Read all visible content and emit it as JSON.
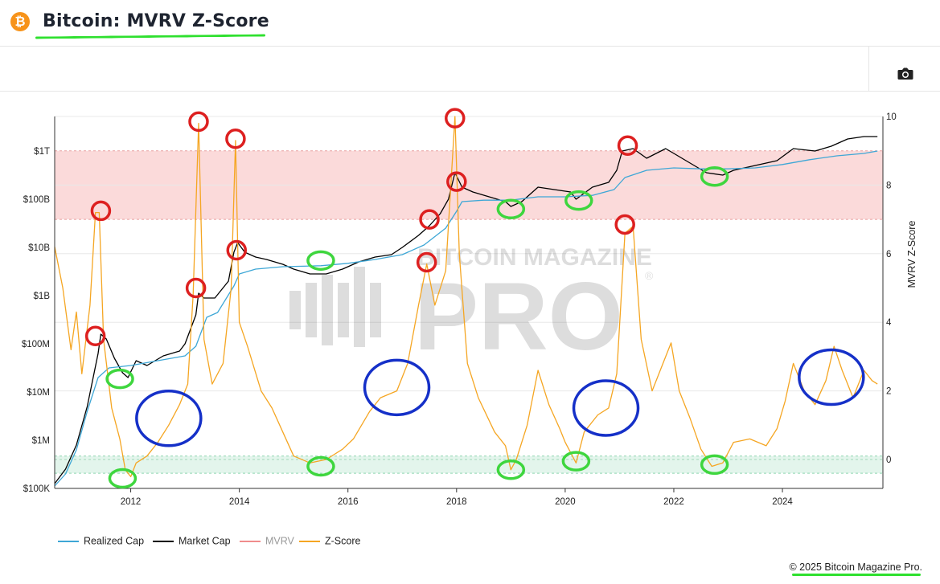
{
  "header": {
    "title": "Bitcoin: MVRV Z-Score",
    "icon": "bitcoin-icon",
    "icon_glyph": "₿"
  },
  "toolbar": {
    "camera_icon": "camera-icon"
  },
  "watermark": {
    "line1": "BITCOIN MAGAZINE",
    "line2": "PRO",
    "registered": "®"
  },
  "footer": {
    "copyright": "© 2025 Bitcoin Magazine Pro."
  },
  "colors": {
    "realized_cap": "#3ea7d6",
    "market_cap": "#000000",
    "mvrv": "#f08c8c",
    "z_score": "#f5a623",
    "red_zone": "#fbdada",
    "green_zone": "#e3f5ec",
    "annotation_red": "#dd2020",
    "annotation_green": "#3ed63e",
    "annotation_blue": "#1530c8"
  },
  "legend": [
    {
      "label": "Realized Cap",
      "color": "#3ea7d6"
    },
    {
      "label": "Market Cap",
      "color": "#000000"
    },
    {
      "label": "MVRV",
      "color": "#f08c8c"
    },
    {
      "label": "Z-Score",
      "color": "#f5a623"
    }
  ],
  "chart_data": {
    "type": "line",
    "title": "Bitcoin: MVRV Z-Score",
    "x_ticks": [
      "2012",
      "2014",
      "2016",
      "2018",
      "2020",
      "2022",
      "2024"
    ],
    "x_range": [
      2010.6,
      2025.85
    ],
    "left_axis": {
      "scale": "log",
      "ticks": [
        "$100K",
        "$1M",
        "$10M",
        "$100M",
        "$1B",
        "$10B",
        "$100B",
        "$1T"
      ],
      "range_log10": [
        5,
        12.95
      ]
    },
    "right_axis": {
      "label": "MVRV Z-Score",
      "ticks": [
        "0",
        "2",
        "4",
        "6",
        "8",
        "10"
      ],
      "range": [
        -0.85,
        10
      ]
    },
    "zones": [
      {
        "name": "overvalued",
        "from": 7.0,
        "to": 9.0,
        "color": "#fbdada"
      },
      {
        "name": "undervalued",
        "from": -0.4,
        "to": 0.1,
        "color": "#e3f5ec"
      }
    ],
    "series": [
      {
        "name": "Market Cap",
        "axis": "left",
        "color": "#000000",
        "points": [
          [
            2010.6,
            5.1
          ],
          [
            2010.8,
            5.4
          ],
          [
            2011.0,
            5.9
          ],
          [
            2011.2,
            6.7
          ],
          [
            2011.4,
            7.8
          ],
          [
            2011.45,
            8.2
          ],
          [
            2011.55,
            8.1
          ],
          [
            2011.7,
            7.7
          ],
          [
            2011.85,
            7.4
          ],
          [
            2011.95,
            7.3
          ],
          [
            2012.1,
            7.65
          ],
          [
            2012.3,
            7.55
          ],
          [
            2012.6,
            7.75
          ],
          [
            2012.9,
            7.85
          ],
          [
            2013.0,
            8.0
          ],
          [
            2013.2,
            8.6
          ],
          [
            2013.25,
            9.05
          ],
          [
            2013.35,
            8.95
          ],
          [
            2013.55,
            8.95
          ],
          [
            2013.8,
            9.3
          ],
          [
            2013.9,
            9.9
          ],
          [
            2013.97,
            10.1
          ],
          [
            2014.1,
            9.9
          ],
          [
            2014.3,
            9.8
          ],
          [
            2014.5,
            9.75
          ],
          [
            2014.8,
            9.65
          ],
          [
            2015.0,
            9.55
          ],
          [
            2015.3,
            9.45
          ],
          [
            2015.6,
            9.45
          ],
          [
            2015.9,
            9.55
          ],
          [
            2016.2,
            9.7
          ],
          [
            2016.5,
            9.8
          ],
          [
            2016.8,
            9.85
          ],
          [
            2017.0,
            10.0
          ],
          [
            2017.3,
            10.25
          ],
          [
            2017.5,
            10.45
          ],
          [
            2017.7,
            10.7
          ],
          [
            2017.85,
            11.0
          ],
          [
            2017.97,
            11.55
          ],
          [
            2018.1,
            11.25
          ],
          [
            2018.3,
            11.15
          ],
          [
            2018.6,
            11.05
          ],
          [
            2018.9,
            10.95
          ],
          [
            2019.0,
            10.85
          ],
          [
            2019.2,
            10.95
          ],
          [
            2019.5,
            11.25
          ],
          [
            2019.8,
            11.2
          ],
          [
            2020.1,
            11.15
          ],
          [
            2020.2,
            11.0
          ],
          [
            2020.5,
            11.25
          ],
          [
            2020.8,
            11.35
          ],
          [
            2020.95,
            11.6
          ],
          [
            2021.05,
            12.0
          ],
          [
            2021.25,
            12.05
          ],
          [
            2021.5,
            11.85
          ],
          [
            2021.85,
            12.05
          ],
          [
            2022.0,
            11.95
          ],
          [
            2022.3,
            11.75
          ],
          [
            2022.6,
            11.55
          ],
          [
            2022.9,
            11.5
          ],
          [
            2023.1,
            11.6
          ],
          [
            2023.5,
            11.7
          ],
          [
            2023.9,
            11.8
          ],
          [
            2024.2,
            12.05
          ],
          [
            2024.6,
            12.0
          ],
          [
            2024.9,
            12.1
          ],
          [
            2025.2,
            12.25
          ],
          [
            2025.5,
            12.3
          ],
          [
            2025.75,
            12.3
          ]
        ]
      },
      {
        "name": "Realized Cap",
        "axis": "left",
        "color": "#3ea7d6",
        "points": [
          [
            2010.6,
            5.05
          ],
          [
            2010.8,
            5.3
          ],
          [
            2011.0,
            5.8
          ],
          [
            2011.2,
            6.6
          ],
          [
            2011.4,
            7.3
          ],
          [
            2011.6,
            7.5
          ],
          [
            2012.0,
            7.55
          ],
          [
            2012.5,
            7.65
          ],
          [
            2013.0,
            7.75
          ],
          [
            2013.2,
            7.95
          ],
          [
            2013.4,
            8.55
          ],
          [
            2013.6,
            8.65
          ],
          [
            2013.9,
            9.2
          ],
          [
            2014.0,
            9.45
          ],
          [
            2014.3,
            9.55
          ],
          [
            2014.8,
            9.6
          ],
          [
            2015.5,
            9.62
          ],
          [
            2016.0,
            9.67
          ],
          [
            2016.5,
            9.75
          ],
          [
            2017.0,
            9.85
          ],
          [
            2017.4,
            10.05
          ],
          [
            2017.8,
            10.4
          ],
          [
            2018.0,
            10.75
          ],
          [
            2018.1,
            10.95
          ],
          [
            2018.5,
            10.98
          ],
          [
            2019.0,
            10.98
          ],
          [
            2019.5,
            11.05
          ],
          [
            2020.0,
            11.05
          ],
          [
            2020.5,
            11.08
          ],
          [
            2020.9,
            11.2
          ],
          [
            2021.1,
            11.45
          ],
          [
            2021.5,
            11.6
          ],
          [
            2022.0,
            11.65
          ],
          [
            2022.5,
            11.63
          ],
          [
            2023.0,
            11.63
          ],
          [
            2023.5,
            11.65
          ],
          [
            2024.0,
            11.72
          ],
          [
            2024.5,
            11.82
          ],
          [
            2025.0,
            11.9
          ],
          [
            2025.5,
            11.95
          ],
          [
            2025.75,
            12.0
          ]
        ]
      },
      {
        "name": "Z-Score",
        "axis": "right",
        "color": "#f5a623",
        "points": [
          [
            2010.6,
            6.2
          ],
          [
            2010.75,
            5.0
          ],
          [
            2010.9,
            3.2
          ],
          [
            2011.0,
            4.3
          ],
          [
            2011.1,
            2.5
          ],
          [
            2011.25,
            4.5
          ],
          [
            2011.35,
            7.2
          ],
          [
            2011.42,
            7.2
          ],
          [
            2011.5,
            3.5
          ],
          [
            2011.65,
            1.5
          ],
          [
            2011.8,
            0.6
          ],
          [
            2011.9,
            -0.3
          ],
          [
            2012.0,
            -0.5
          ],
          [
            2012.1,
            -0.1
          ],
          [
            2012.3,
            0.1
          ],
          [
            2012.5,
            0.5
          ],
          [
            2012.7,
            1.0
          ],
          [
            2012.9,
            1.6
          ],
          [
            2013.05,
            2.2
          ],
          [
            2013.15,
            4.8
          ],
          [
            2013.25,
            9.8
          ],
          [
            2013.35,
            3.5
          ],
          [
            2013.5,
            2.2
          ],
          [
            2013.7,
            2.8
          ],
          [
            2013.85,
            5.0
          ],
          [
            2013.93,
            9.3
          ],
          [
            2014.0,
            4.0
          ],
          [
            2014.15,
            3.3
          ],
          [
            2014.4,
            2.0
          ],
          [
            2014.6,
            1.5
          ],
          [
            2014.8,
            0.8
          ],
          [
            2015.0,
            0.1
          ],
          [
            2015.3,
            -0.1
          ],
          [
            2015.6,
            0.0
          ],
          [
            2015.9,
            0.3
          ],
          [
            2016.1,
            0.6
          ],
          [
            2016.4,
            1.4
          ],
          [
            2016.6,
            1.8
          ],
          [
            2016.9,
            2.0
          ],
          [
            2017.1,
            2.8
          ],
          [
            2017.3,
            4.5
          ],
          [
            2017.45,
            5.7
          ],
          [
            2017.6,
            4.5
          ],
          [
            2017.8,
            5.5
          ],
          [
            2017.97,
            10.0
          ],
          [
            2018.05,
            6.0
          ],
          [
            2018.2,
            2.8
          ],
          [
            2018.4,
            1.8
          ],
          [
            2018.7,
            0.8
          ],
          [
            2018.9,
            0.4
          ],
          [
            2019.0,
            -0.3
          ],
          [
            2019.1,
            0.0
          ],
          [
            2019.3,
            1.0
          ],
          [
            2019.5,
            2.6
          ],
          [
            2019.7,
            1.6
          ],
          [
            2019.9,
            0.9
          ],
          [
            2020.0,
            0.5
          ],
          [
            2020.2,
            -0.1
          ],
          [
            2020.35,
            0.8
          ],
          [
            2020.6,
            1.3
          ],
          [
            2020.8,
            1.5
          ],
          [
            2020.95,
            2.5
          ],
          [
            2021.1,
            6.6
          ],
          [
            2021.25,
            6.8
          ],
          [
            2021.4,
            3.5
          ],
          [
            2021.6,
            2.0
          ],
          [
            2021.8,
            2.8
          ],
          [
            2021.95,
            3.4
          ],
          [
            2022.1,
            2.0
          ],
          [
            2022.3,
            1.2
          ],
          [
            2022.5,
            0.3
          ],
          [
            2022.7,
            -0.2
          ],
          [
            2022.9,
            -0.1
          ],
          [
            2023.1,
            0.5
          ],
          [
            2023.4,
            0.6
          ],
          [
            2023.7,
            0.4
          ],
          [
            2023.9,
            0.9
          ],
          [
            2024.05,
            1.7
          ],
          [
            2024.2,
            2.8
          ],
          [
            2024.4,
            2.0
          ],
          [
            2024.6,
            1.6
          ],
          [
            2024.8,
            2.3
          ],
          [
            2024.95,
            3.3
          ],
          [
            2025.1,
            2.6
          ],
          [
            2025.3,
            1.8
          ],
          [
            2025.5,
            2.6
          ],
          [
            2025.65,
            2.3
          ],
          [
            2025.75,
            2.2
          ]
        ]
      }
    ],
    "annotations": {
      "red_circles": [
        [
          2011.45,
          7.25
        ],
        [
          2013.25,
          9.85
        ],
        [
          2013.93,
          9.35
        ],
        [
          2011.35,
          3.6
        ],
        [
          2013.2,
          5.0
        ],
        [
          2013.95,
          6.1
        ],
        [
          2017.5,
          7.0
        ],
        [
          2017.45,
          5.75
        ],
        [
          2018.0,
          8.1
        ],
        [
          2017.97,
          9.95
        ],
        [
          2021.15,
          9.15
        ],
        [
          2021.1,
          6.85
        ]
      ],
      "green_circles": [
        [
          2011.8,
          2.35
        ],
        [
          2011.85,
          -0.55
        ],
        [
          2015.5,
          5.8
        ],
        [
          2015.5,
          -0.2
        ],
        [
          2019.0,
          7.3
        ],
        [
          2019.0,
          -0.3
        ],
        [
          2020.25,
          7.55
        ],
        [
          2020.2,
          -0.05
        ],
        [
          2022.75,
          8.25
        ],
        [
          2022.75,
          -0.15
        ]
      ],
      "blue_loops": [
        [
          2012.7,
          1.2
        ],
        [
          2016.9,
          2.1
        ],
        [
          2020.75,
          1.5
        ],
        [
          2024.9,
          2.4
        ]
      ]
    }
  }
}
